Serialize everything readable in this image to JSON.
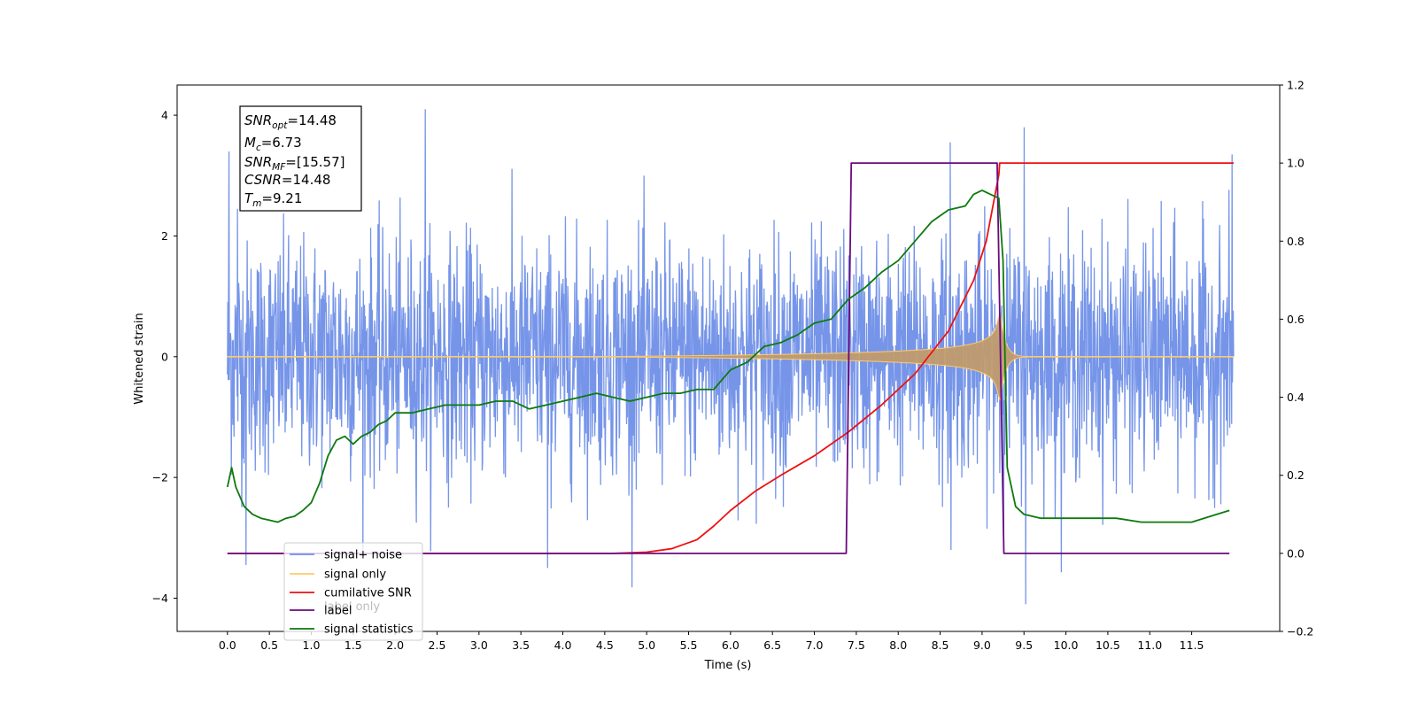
{
  "chart_data": {
    "type": "line",
    "xlabel": "Time (s)",
    "ylabel": "Whitened strain",
    "xlim": [
      -0.6,
      12.55
    ],
    "ylim": [
      -4.55,
      4.5
    ],
    "y2lim": [
      -0.2,
      1.2
    ],
    "x_ticks": [
      "0.0",
      "0.5",
      "1.0",
      "1.5",
      "2.0",
      "2.5",
      "3.0",
      "3.5",
      "4.0",
      "4.5",
      "5.0",
      "5.5",
      "6.0",
      "6.5",
      "7.0",
      "7.5",
      "8.0",
      "8.5",
      "9.0",
      "9.5",
      "10.0",
      "10.5",
      "11.0",
      "11.5"
    ],
    "y_ticks": [
      "4",
      "2",
      "0",
      "−2",
      "−4"
    ],
    "y2_ticks": [
      "1.2",
      "1.0",
      "0.8",
      "0.6",
      "0.4",
      "0.2",
      "0.0",
      "−0.2"
    ],
    "annotation_lines": [
      {
        "base": "SNR",
        "sub": "opt",
        "rest": "=14.48"
      },
      {
        "base": "M",
        "sub": "c",
        "rest": "=6.73"
      },
      {
        "base": "SNR",
        "sub": "MF",
        "rest": "=[15.57]"
      },
      {
        "base": "CSNR",
        "sub": "",
        "rest": "=14.48"
      },
      {
        "base": "T",
        "sub": "m",
        "rest": "=9.21"
      }
    ],
    "legend": [
      {
        "label": "signal+ noise",
        "color": "#6f8fe8"
      },
      {
        "label": "signal only",
        "color": "#ffc96b"
      },
      {
        "label": "cumilative SNR",
        "color": "#ee1111"
      },
      {
        "label": "label",
        "color": "#6b0a7d"
      },
      {
        "label": "signal statistics",
        "color": "#0d7a0d"
      }
    ],
    "hidden_legend_text": [
      "label only"
    ],
    "noise": {
      "t_start": 0.0,
      "t_end": 12.0,
      "sigma": 0.95,
      "peaks": [
        [
          0.02,
          3.4
        ],
        [
          0.12,
          2.45
        ],
        [
          0.22,
          -3.45
        ],
        [
          2.36,
          4.1
        ],
        [
          3.82,
          -3.5
        ],
        [
          8.62,
          3.55
        ],
        [
          8.63,
          -3.2
        ],
        [
          9.5,
          3.8
        ],
        [
          9.52,
          -4.1
        ],
        [
          11.98,
          3.35
        ]
      ]
    },
    "signal_envelope": {
      "t_start": 4.3,
      "t_merge": 9.2,
      "peak_amplitude": 0.95,
      "ringdown": 0.06
    },
    "series": [
      {
        "name": "cumilative SNR",
        "axis": "right",
        "color": "#ee1111",
        "x": [
          0.0,
          4.6,
          5.0,
          5.3,
          5.6,
          5.8,
          6.0,
          6.3,
          6.6,
          7.0,
          7.4,
          7.8,
          8.2,
          8.6,
          8.9,
          9.05,
          9.2,
          9.21,
          12.0
        ],
        "y": [
          0.0,
          0.0,
          0.003,
          0.012,
          0.035,
          0.07,
          0.11,
          0.16,
          0.2,
          0.25,
          0.31,
          0.38,
          0.46,
          0.57,
          0.7,
          0.8,
          0.97,
          1.0,
          1.0
        ]
      },
      {
        "name": "label",
        "axis": "right",
        "color": "#6b0a7d",
        "x": [
          0.0,
          7.38,
          7.44,
          9.18,
          9.26,
          11.95
        ],
        "y": [
          0.0,
          0.0,
          1.0,
          1.0,
          0.0,
          0.0
        ]
      },
      {
        "name": "signal statistics",
        "axis": "right",
        "color": "#0d7a0d",
        "x": [
          0.0,
          0.05,
          0.1,
          0.2,
          0.3,
          0.4,
          0.5,
          0.6,
          0.7,
          0.8,
          0.9,
          1.0,
          1.1,
          1.2,
          1.3,
          1.4,
          1.5,
          1.6,
          1.7,
          1.8,
          1.9,
          2.0,
          2.2,
          2.4,
          2.6,
          2.8,
          3.0,
          3.2,
          3.4,
          3.6,
          3.8,
          4.0,
          4.2,
          4.4,
          4.6,
          4.8,
          5.0,
          5.2,
          5.4,
          5.6,
          5.8,
          6.0,
          6.2,
          6.4,
          6.6,
          6.8,
          7.0,
          7.2,
          7.4,
          7.6,
          7.8,
          8.0,
          8.2,
          8.4,
          8.6,
          8.8,
          8.9,
          9.0,
          9.1,
          9.2,
          9.25,
          9.3,
          9.4,
          9.5,
          9.7,
          9.9,
          10.1,
          10.3,
          10.6,
          10.9,
          11.2,
          11.5,
          11.8,
          11.95
        ],
        "y": [
          0.17,
          0.22,
          0.17,
          0.12,
          0.1,
          0.09,
          0.085,
          0.08,
          0.09,
          0.095,
          0.11,
          0.13,
          0.18,
          0.25,
          0.29,
          0.3,
          0.28,
          0.3,
          0.31,
          0.33,
          0.34,
          0.36,
          0.36,
          0.37,
          0.38,
          0.38,
          0.38,
          0.39,
          0.39,
          0.37,
          0.38,
          0.39,
          0.4,
          0.41,
          0.4,
          0.39,
          0.4,
          0.41,
          0.41,
          0.42,
          0.42,
          0.47,
          0.49,
          0.53,
          0.54,
          0.56,
          0.59,
          0.6,
          0.65,
          0.68,
          0.72,
          0.75,
          0.8,
          0.85,
          0.88,
          0.89,
          0.92,
          0.93,
          0.92,
          0.91,
          0.75,
          0.22,
          0.12,
          0.1,
          0.09,
          0.09,
          0.09,
          0.09,
          0.09,
          0.08,
          0.08,
          0.08,
          0.1,
          0.11
        ]
      }
    ]
  }
}
